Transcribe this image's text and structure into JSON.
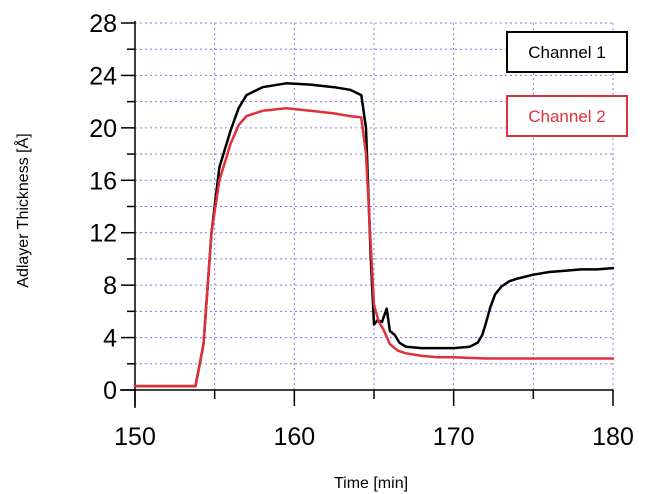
{
  "chart_data": {
    "type": "line",
    "title": "",
    "xlabel": "Time [min]",
    "ylabel": "Adlayer Thickness [Å]",
    "xlim": [
      150,
      180
    ],
    "ylim": [
      0,
      28
    ],
    "x_ticks": [
      150,
      160,
      170,
      180
    ],
    "y_ticks": [
      0,
      4,
      8,
      12,
      16,
      20,
      24,
      28
    ],
    "grid": true,
    "legend_position": "top-right",
    "series": [
      {
        "name": "Channel 1",
        "color": "#000000",
        "x": [
          150,
          153.8,
          154.3,
          154.8,
          155.3,
          156.0,
          156.5,
          157.0,
          158.0,
          159.5,
          161.0,
          162.5,
          163.5,
          164.2,
          164.5,
          164.8,
          165.0,
          165.2,
          165.5,
          165.8,
          166.0,
          166.3,
          166.6,
          167.0,
          168.0,
          169.0,
          170.0,
          171.0,
          171.5,
          171.8,
          172.0,
          172.3,
          172.6,
          173.0,
          173.5,
          174.0,
          175.0,
          176.0,
          177.0,
          178.0,
          179.0,
          180.0
        ],
        "y": [
          0.3,
          0.3,
          3.5,
          12.0,
          17.0,
          19.8,
          21.5,
          22.5,
          23.1,
          23.4,
          23.3,
          23.1,
          22.9,
          22.5,
          20.0,
          10.0,
          5.0,
          5.3,
          5.2,
          6.2,
          4.5,
          4.2,
          3.6,
          3.3,
          3.2,
          3.2,
          3.2,
          3.3,
          3.6,
          4.2,
          5.0,
          6.3,
          7.3,
          7.9,
          8.3,
          8.5,
          8.8,
          9.0,
          9.1,
          9.2,
          9.2,
          9.3
        ]
      },
      {
        "name": "Channel 2",
        "color": "#e0303a",
        "x": [
          150,
          153.8,
          154.3,
          154.8,
          155.3,
          156.0,
          156.5,
          157.0,
          158.0,
          159.5,
          161.0,
          162.5,
          163.5,
          164.2,
          164.5,
          164.8,
          165.0,
          165.3,
          165.6,
          166.0,
          166.5,
          167.0,
          168.0,
          169.0,
          170.0,
          172.0,
          175.0,
          180.0
        ],
        "y": [
          0.3,
          0.3,
          3.5,
          12.0,
          16.0,
          18.8,
          20.2,
          20.9,
          21.3,
          21.5,
          21.3,
          21.1,
          20.9,
          20.8,
          18.0,
          11.0,
          6.5,
          5.2,
          4.6,
          3.5,
          3.0,
          2.8,
          2.6,
          2.5,
          2.5,
          2.4,
          2.4,
          2.4
        ]
      }
    ]
  }
}
